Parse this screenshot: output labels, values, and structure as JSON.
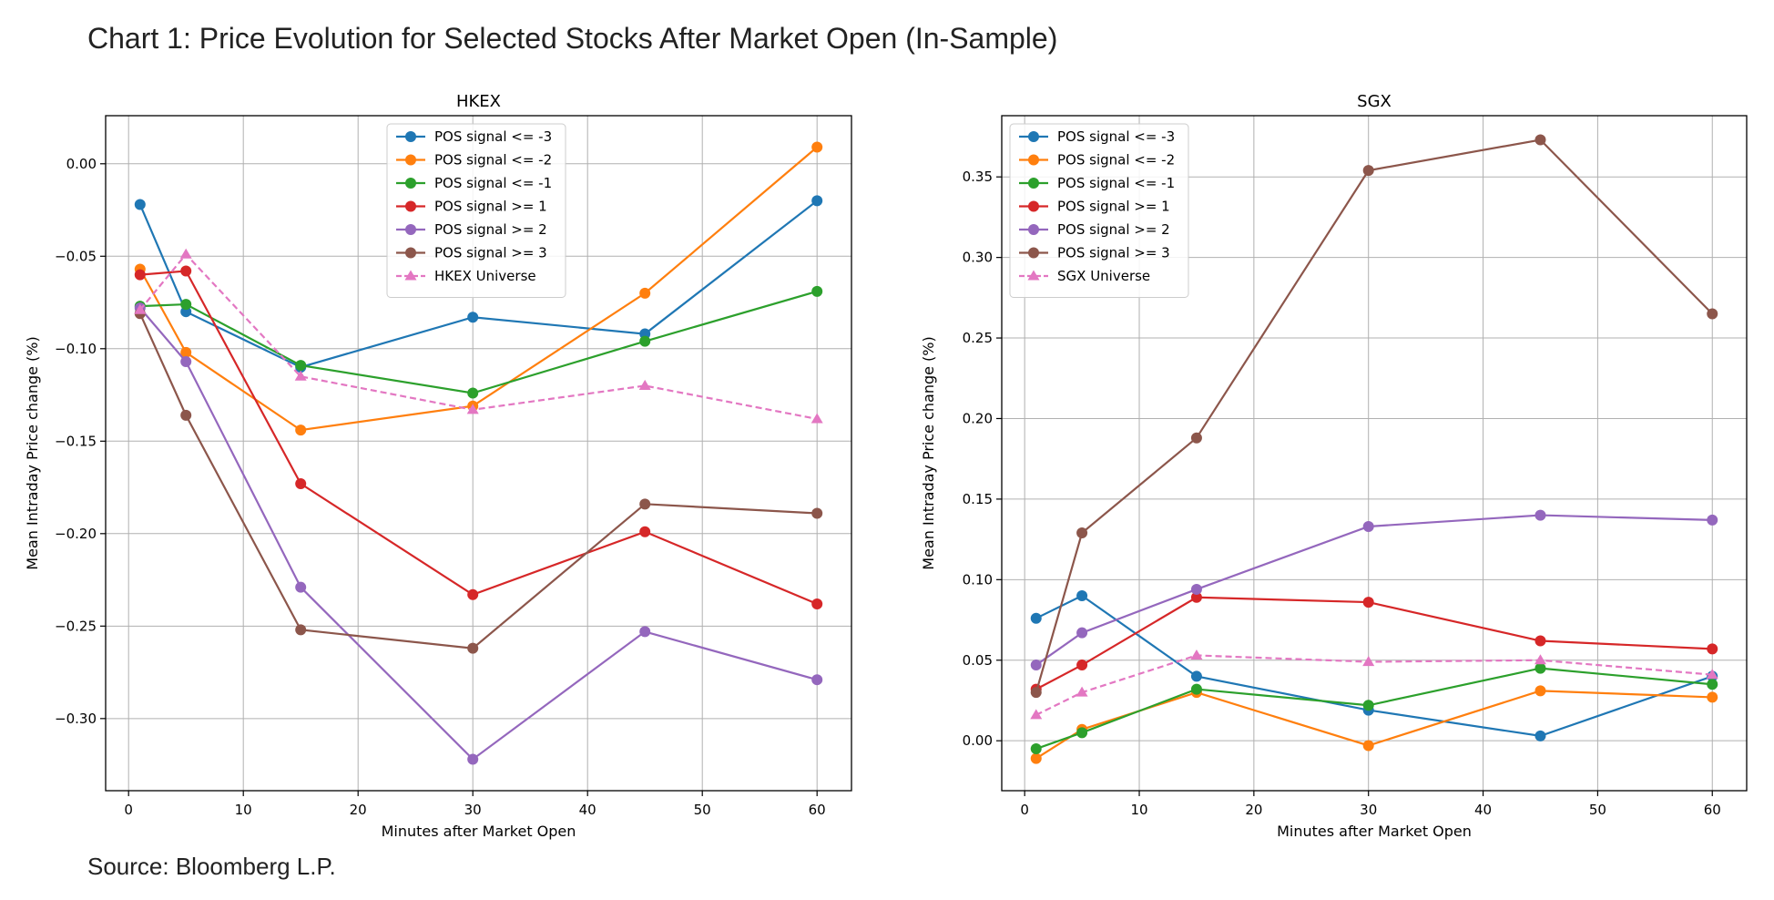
{
  "title": "Chart 1: Price Evolution for Selected Stocks After Market Open (In-Sample)",
  "source": "Source: Bloomberg L.P.",
  "chart_data": [
    {
      "type": "line",
      "title": "HKEX",
      "xlabel": "Minutes after Market Open",
      "ylabel": "Mean Intraday Price change (%)",
      "xlim": [
        -2,
        63
      ],
      "ylim": [
        -0.339,
        0.026
      ],
      "xticks": [
        0,
        10,
        20,
        30,
        40,
        50,
        60
      ],
      "xtick_labels": [
        "0",
        "10",
        "20",
        "30",
        "40",
        "50",
        "60"
      ],
      "yticks": [
        0.0,
        -0.05,
        -0.1,
        -0.15,
        -0.2,
        -0.25,
        -0.3
      ],
      "ytick_labels": [
        "0.00",
        "−0.05",
        "−0.10",
        "−0.15",
        "−0.20",
        "−0.25",
        "−0.30"
      ],
      "grid": true,
      "legend_position": "upper-center",
      "x": [
        1,
        5,
        15,
        30,
        45,
        60
      ],
      "series": [
        {
          "name": "POS signal <= -3",
          "color": "#1f77b4",
          "marker": "circle",
          "dashed": false,
          "values": [
            -0.022,
            -0.08,
            -0.11,
            -0.083,
            -0.092,
            -0.02
          ]
        },
        {
          "name": "POS signal <= -2",
          "color": "#ff7f0e",
          "marker": "circle",
          "dashed": false,
          "values": [
            -0.057,
            -0.102,
            -0.144,
            -0.131,
            -0.07,
            0.009
          ]
        },
        {
          "name": "POS signal <= -1",
          "color": "#2ca02c",
          "marker": "circle",
          "dashed": false,
          "values": [
            -0.077,
            -0.076,
            -0.109,
            -0.124,
            -0.096,
            -0.069
          ]
        },
        {
          "name": "POS signal >= 1",
          "color": "#d62728",
          "marker": "circle",
          "dashed": false,
          "values": [
            -0.06,
            -0.058,
            -0.173,
            -0.233,
            -0.199,
            -0.238
          ]
        },
        {
          "name": "POS signal >= 2",
          "color": "#9467bd",
          "marker": "circle",
          "dashed": false,
          "values": [
            -0.078,
            -0.107,
            -0.229,
            -0.322,
            -0.253,
            -0.279
          ]
        },
        {
          "name": "POS signal >= 3",
          "color": "#8c564b",
          "marker": "circle",
          "dashed": false,
          "values": [
            -0.081,
            -0.136,
            -0.252,
            -0.262,
            -0.184,
            -0.189
          ]
        },
        {
          "name": "HKEX Universe",
          "color": "#e377c2",
          "marker": "triangle",
          "dashed": true,
          "values": [
            -0.079,
            -0.049,
            -0.115,
            -0.133,
            -0.12,
            -0.138
          ]
        }
      ]
    },
    {
      "type": "line",
      "title": "SGX",
      "xlabel": "Minutes after Market Open",
      "ylabel": "Mean Intraday Price change (%)",
      "xlim": [
        -2,
        63
      ],
      "ylim": [
        -0.031,
        0.388
      ],
      "xticks": [
        0,
        10,
        20,
        30,
        40,
        50,
        60
      ],
      "xtick_labels": [
        "0",
        "10",
        "20",
        "30",
        "40",
        "50",
        "60"
      ],
      "yticks": [
        0.0,
        0.05,
        0.1,
        0.15,
        0.2,
        0.25,
        0.3,
        0.35
      ],
      "ytick_labels": [
        "0.00",
        "0.05",
        "0.10",
        "0.15",
        "0.20",
        "0.25",
        "0.30",
        "0.35"
      ],
      "grid": true,
      "legend_position": "upper-left",
      "x": [
        1,
        5,
        15,
        30,
        45,
        60
      ],
      "series": [
        {
          "name": "POS signal <= -3",
          "color": "#1f77b4",
          "marker": "circle",
          "dashed": false,
          "values": [
            0.076,
            0.09,
            0.04,
            0.019,
            0.003,
            0.04
          ]
        },
        {
          "name": "POS signal <= -2",
          "color": "#ff7f0e",
          "marker": "circle",
          "dashed": false,
          "values": [
            -0.011,
            0.007,
            0.03,
            -0.003,
            0.031,
            0.027
          ]
        },
        {
          "name": "POS signal <= -1",
          "color": "#2ca02c",
          "marker": "circle",
          "dashed": false,
          "values": [
            -0.005,
            0.005,
            0.032,
            0.022,
            0.045,
            0.035
          ]
        },
        {
          "name": "POS signal >= 1",
          "color": "#d62728",
          "marker": "circle",
          "dashed": false,
          "values": [
            0.032,
            0.047,
            0.089,
            0.086,
            0.062,
            0.057
          ]
        },
        {
          "name": "POS signal >= 2",
          "color": "#9467bd",
          "marker": "circle",
          "dashed": false,
          "values": [
            0.047,
            0.067,
            0.094,
            0.133,
            0.14,
            0.137
          ]
        },
        {
          "name": "POS signal >= 3",
          "color": "#8c564b",
          "marker": "circle",
          "dashed": false,
          "values": [
            0.03,
            0.129,
            0.188,
            0.354,
            0.373,
            0.265
          ]
        },
        {
          "name": "SGX Universe",
          "color": "#e377c2",
          "marker": "triangle",
          "dashed": true,
          "values": [
            0.016,
            0.03,
            0.053,
            0.049,
            0.05,
            0.041
          ]
        }
      ]
    }
  ]
}
